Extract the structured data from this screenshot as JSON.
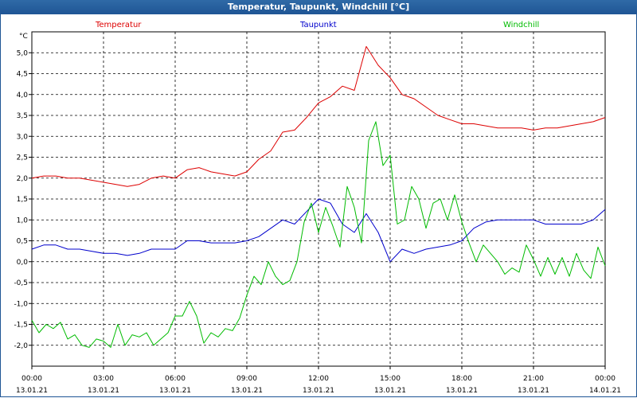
{
  "window": {
    "title": "Temperatur, Taupunkt, Windchill [°C]"
  },
  "colors": {
    "temperature": "#dd0000",
    "dewpoint": "#0000cc",
    "windchill": "#00bb00",
    "titlebar": "#1f5595"
  },
  "chart_data": {
    "type": "line",
    "title": "Temperatur, Taupunkt, Windchill [°C]",
    "ylabel": "°C",
    "ylim": [
      -2.5,
      5.5
    ],
    "xlim": [
      0,
      24
    ],
    "yticks": [
      "5,0",
      "4,5",
      "4,0",
      "3,5",
      "3,0",
      "2,5",
      "2,0",
      "1,5",
      "1,0",
      "0,5",
      "0,0",
      "-0,5",
      "-1,0",
      "-1,5",
      "-2,0"
    ],
    "ytick_values": [
      5.0,
      4.5,
      4.0,
      3.5,
      3.0,
      2.5,
      2.0,
      1.5,
      1.0,
      0.5,
      0.0,
      -0.5,
      -1.0,
      -1.5,
      -2.0
    ],
    "xticks": [
      {
        "time": "00:00",
        "date": "13.01.21"
      },
      {
        "time": "03:00",
        "date": "13.01.21"
      },
      {
        "time": "06:00",
        "date": "13.01.21"
      },
      {
        "time": "09:00",
        "date": "13.01.21"
      },
      {
        "time": "12:00",
        "date": "13.01.21"
      },
      {
        "time": "15:00",
        "date": "13.01.21"
      },
      {
        "time": "18:00",
        "date": "13.01.21"
      },
      {
        "time": "21:00",
        "date": "13.01.21"
      },
      {
        "time": "00:00",
        "date": "14.01.21"
      }
    ],
    "grid": true,
    "series": [
      {
        "name": "Temperatur",
        "x": [
          0,
          0.5,
          1,
          1.5,
          2,
          2.5,
          3,
          3.5,
          4,
          4.5,
          5,
          5.5,
          6,
          6.5,
          7,
          7.5,
          8,
          8.5,
          9,
          9.5,
          10,
          10.5,
          11,
          11.5,
          12,
          12.5,
          13,
          13.5,
          14,
          14.5,
          15,
          15.5,
          16,
          16.5,
          17,
          17.5,
          18,
          18.5,
          19,
          19.5,
          20,
          20.5,
          21,
          21.5,
          22,
          22.5,
          23,
          23.5,
          24
        ],
        "y": [
          2.0,
          2.05,
          2.05,
          2.0,
          2.0,
          1.95,
          1.9,
          1.85,
          1.8,
          1.85,
          2.0,
          2.05,
          2.0,
          2.2,
          2.25,
          2.15,
          2.1,
          2.05,
          2.15,
          2.45,
          2.65,
          3.1,
          3.15,
          3.45,
          3.8,
          3.95,
          4.2,
          4.1,
          5.15,
          4.7,
          4.4,
          4.0,
          3.9,
          3.7,
          3.5,
          3.4,
          3.3,
          3.3,
          3.25,
          3.2,
          3.2,
          3.2,
          3.15,
          3.2,
          3.2,
          3.25,
          3.3,
          3.35,
          3.45
        ]
      },
      {
        "name": "Taupunkt",
        "x": [
          0,
          0.5,
          1,
          1.5,
          2,
          2.5,
          3,
          3.5,
          4,
          4.5,
          5,
          5.5,
          6,
          6.5,
          7,
          7.5,
          8,
          8.5,
          9,
          9.5,
          10,
          10.5,
          11,
          11.5,
          12,
          12.5,
          13,
          13.5,
          14,
          14.5,
          15,
          15.5,
          16,
          16.5,
          17,
          17.5,
          18,
          18.5,
          19,
          19.5,
          20,
          20.5,
          21,
          21.5,
          22,
          22.5,
          23,
          23.5,
          24
        ],
        "y": [
          0.3,
          0.4,
          0.4,
          0.3,
          0.3,
          0.25,
          0.2,
          0.2,
          0.15,
          0.2,
          0.3,
          0.3,
          0.3,
          0.5,
          0.5,
          0.45,
          0.45,
          0.45,
          0.5,
          0.6,
          0.8,
          1.0,
          0.9,
          1.2,
          1.5,
          1.4,
          0.9,
          0.7,
          1.15,
          0.7,
          0.0,
          0.3,
          0.2,
          0.3,
          0.35,
          0.4,
          0.5,
          0.8,
          0.95,
          1.0,
          1.0,
          1.0,
          1.0,
          0.9,
          0.9,
          0.9,
          0.9,
          1.0,
          1.25
        ]
      },
      {
        "name": "Windchill",
        "x": [
          0,
          0.3,
          0.6,
          0.9,
          1.2,
          1.5,
          1.8,
          2.1,
          2.4,
          2.7,
          3.0,
          3.3,
          3.6,
          3.9,
          4.2,
          4.5,
          4.8,
          5.1,
          5.4,
          5.7,
          6.0,
          6.3,
          6.6,
          6.9,
          7.2,
          7.5,
          7.8,
          8.1,
          8.4,
          8.7,
          9.0,
          9.3,
          9.6,
          9.9,
          10.2,
          10.5,
          10.8,
          11.1,
          11.4,
          11.7,
          12.0,
          12.3,
          12.6,
          12.9,
          13.2,
          13.5,
          13.8,
          14.1,
          14.4,
          14.7,
          15.0,
          15.3,
          15.6,
          15.9,
          16.2,
          16.5,
          16.8,
          17.1,
          17.4,
          17.7,
          18.0,
          18.3,
          18.6,
          18.9,
          19.2,
          19.5,
          19.8,
          20.1,
          20.4,
          20.7,
          21.0,
          21.3,
          21.6,
          21.9,
          22.2,
          22.5,
          22.8,
          23.1,
          23.4,
          23.7,
          24.0
        ],
        "y": [
          -1.4,
          -1.7,
          -1.5,
          -1.6,
          -1.45,
          -1.85,
          -1.75,
          -2.0,
          -2.05,
          -1.85,
          -1.9,
          -2.05,
          -1.5,
          -2.0,
          -1.75,
          -1.8,
          -1.7,
          -2.0,
          -1.85,
          -1.7,
          -1.3,
          -1.3,
          -0.95,
          -1.3,
          -1.95,
          -1.7,
          -1.8,
          -1.6,
          -1.65,
          -1.35,
          -0.8,
          -0.35,
          -0.55,
          0.0,
          -0.35,
          -0.55,
          -0.45,
          0.0,
          0.95,
          1.4,
          0.7,
          1.3,
          0.85,
          0.35,
          1.8,
          1.3,
          0.45,
          2.9,
          3.35,
          2.3,
          2.55,
          0.9,
          1.0,
          1.8,
          1.5,
          0.8,
          1.4,
          1.5,
          1.0,
          1.6,
          0.95,
          0.45,
          0.0,
          0.4,
          0.2,
          0.0,
          -0.3,
          -0.15,
          -0.25,
          0.4,
          0.05,
          -0.35,
          0.1,
          -0.3,
          0.1,
          -0.35,
          0.2,
          -0.2,
          -0.4,
          0.35,
          -0.1
        ]
      }
    ]
  }
}
